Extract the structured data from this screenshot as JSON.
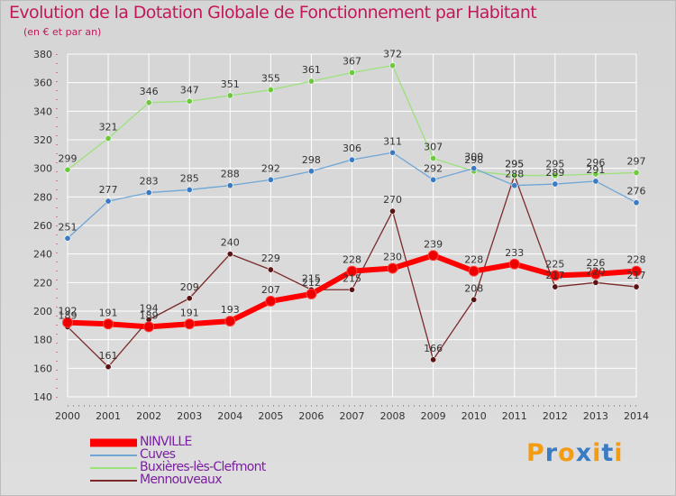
{
  "title": "Evolution de la Dotation Globale de Fonctionnement par Habitant",
  "subtitle": "(en € et par an)",
  "brand": {
    "letters": [
      "P",
      "r",
      "o",
      "x",
      "i",
      "t",
      "i"
    ],
    "letter_colors": [
      "#f39c12",
      "#3a7cc4",
      "#f39c12",
      "#3a7cc4",
      "#f39c12",
      "#3a7cc4",
      "#f39c12"
    ]
  },
  "colors": {
    "title": "#c2185b",
    "legend_text": "#7b1fa2",
    "grid": "#ffffff",
    "axis_text": "#333333"
  },
  "chart_data": {
    "type": "line",
    "title": "Evolution de la Dotation Globale de Fonctionnement par Habitant",
    "subtitle": "(en € et par an)",
    "xlabel": "",
    "ylabel": "",
    "x": [
      "2000",
      "2001",
      "2002",
      "2003",
      "2004",
      "2005",
      "2006",
      "2007",
      "2008",
      "2009",
      "2010",
      "2011",
      "2012",
      "2013",
      "2014"
    ],
    "ylim": [
      140,
      380
    ],
    "yticks": [
      140,
      160,
      180,
      200,
      220,
      240,
      260,
      280,
      300,
      320,
      340,
      360,
      380
    ],
    "grid": true,
    "legend_position": "bottom-left",
    "series": [
      {
        "name": "NINVILLE",
        "color": "#ff0000",
        "marker": "#ee0000",
        "emphasis": true,
        "values": [
          192,
          191,
          189,
          191,
          193,
          207,
          212,
          228,
          230,
          239,
          228,
          233,
          225,
          226,
          228
        ]
      },
      {
        "name": "Cuves",
        "color": "#6fa6d6",
        "marker": "#3a7cc4",
        "values": [
          251,
          277,
          283,
          285,
          288,
          292,
          298,
          306,
          311,
          292,
          300,
          288,
          289,
          291,
          276
        ]
      },
      {
        "name": "Buxières-lès-Clefmont",
        "color": "#9be27a",
        "marker": "#6ec93f",
        "values": [
          299,
          321,
          346,
          347,
          351,
          355,
          361,
          367,
          372,
          307,
          298,
          295,
          295,
          296,
          297
        ]
      },
      {
        "name": "Mennouveaux",
        "color": "#7a2a2a",
        "marker": "#5a1414",
        "values": [
          189,
          161,
          194,
          209,
          240,
          229,
          215,
          215,
          270,
          166,
          208,
          295,
          217,
          220,
          217
        ]
      }
    ]
  }
}
